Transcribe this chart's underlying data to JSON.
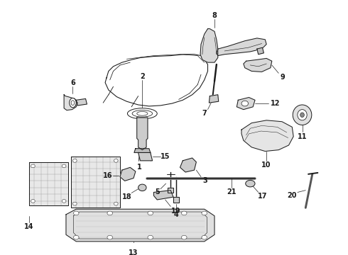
{
  "background_color": "#ffffff",
  "line_color": "#1a1a1a",
  "fig_width": 4.9,
  "fig_height": 3.6,
  "dpi": 100,
  "lw": 0.7
}
